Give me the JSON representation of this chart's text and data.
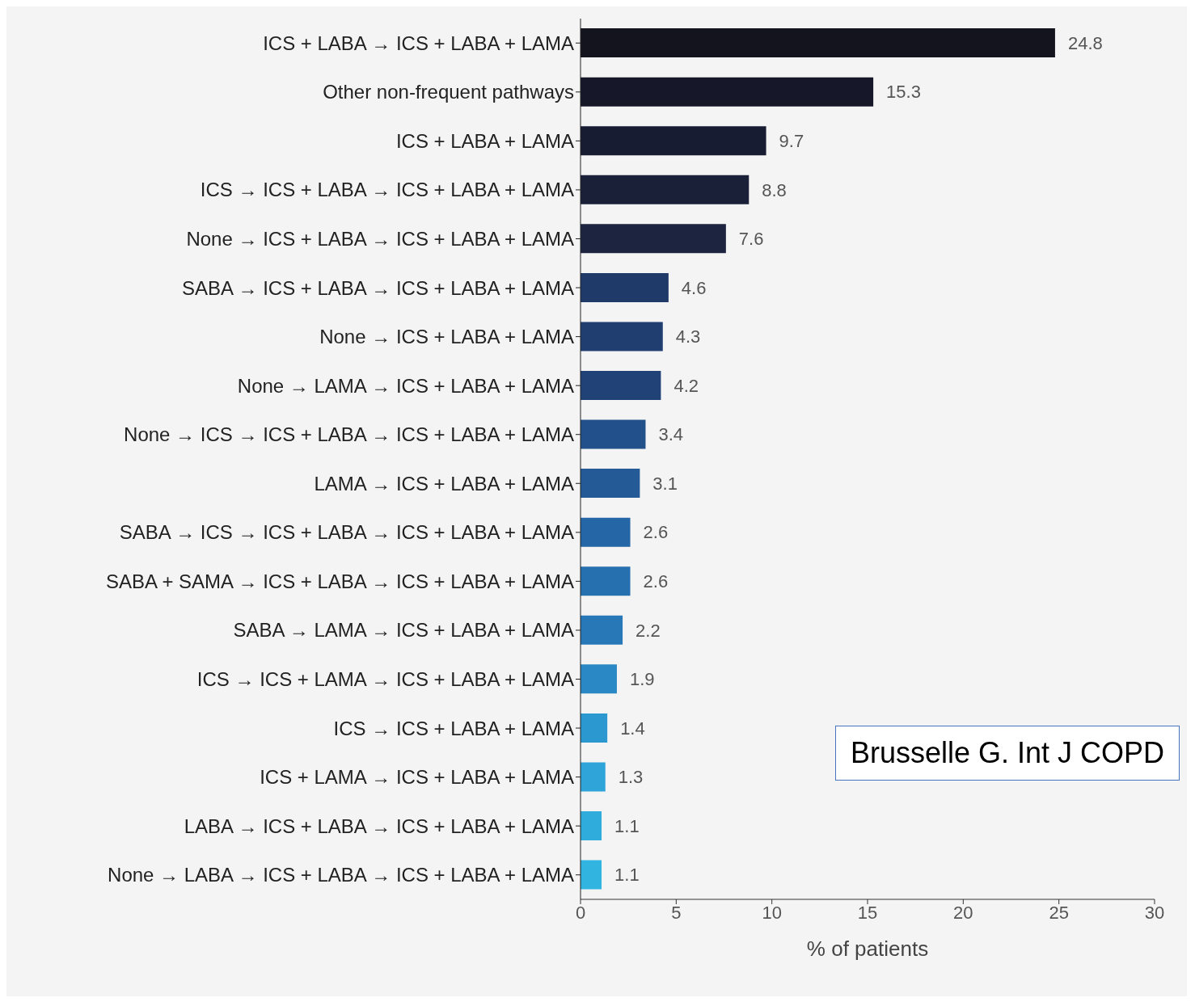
{
  "chart_data": {
    "type": "bar",
    "orientation": "horizontal",
    "categories": [
      "ICS + LABA → ICS + LABA + LAMA",
      "Other non-frequent pathways",
      "ICS + LABA + LAMA",
      "ICS → ICS + LABA → ICS + LABA + LAMA",
      "None → ICS + LABA → ICS + LABA + LAMA",
      "SABA → ICS + LABA → ICS + LABA + LAMA",
      "None → ICS + LABA + LAMA",
      "None → LAMA → ICS + LABA + LAMA",
      "None → ICS → ICS + LABA → ICS + LABA + LAMA",
      "LAMA → ICS + LABA + LAMA",
      "SABA → ICS → ICS + LABA → ICS + LABA + LAMA",
      "SABA + SAMA → ICS + LABA → ICS + LABA + LAMA",
      "SABA → LAMA → ICS + LABA + LAMA",
      "ICS → ICS + LAMA → ICS + LABA + LAMA",
      "ICS → ICS + LABA + LAMA",
      "ICS + LAMA → ICS + LABA + LAMA",
      "LABA → ICS + LABA → ICS + LABA + LAMA",
      "None → LABA → ICS + LABA → ICS + LABA + LAMA"
    ],
    "values": [
      24.8,
      15.3,
      9.7,
      8.8,
      7.6,
      4.6,
      4.3,
      4.2,
      3.4,
      3.1,
      2.6,
      2.6,
      2.2,
      1.9,
      1.4,
      1.3,
      1.1,
      1.1
    ],
    "colors": [
      "#14141e",
      "#16182a",
      "#181c32",
      "#1a2038",
      "#1c2440",
      "#1f3a68",
      "#203e70",
      "#214276",
      "#22508a",
      "#245a96",
      "#2566a6",
      "#2670b0",
      "#2878b8",
      "#2a88c4",
      "#2c98d0",
      "#2ea4d8",
      "#30acdc",
      "#32b4e0"
    ],
    "xlim": [
      0,
      30
    ],
    "xticks": [
      0,
      5,
      10,
      15,
      20,
      25,
      30
    ],
    "xlabel": "% of patients",
    "data_labels": true,
    "grid": false,
    "annotations": [
      "Brusselle G. Int J COPD"
    ]
  }
}
